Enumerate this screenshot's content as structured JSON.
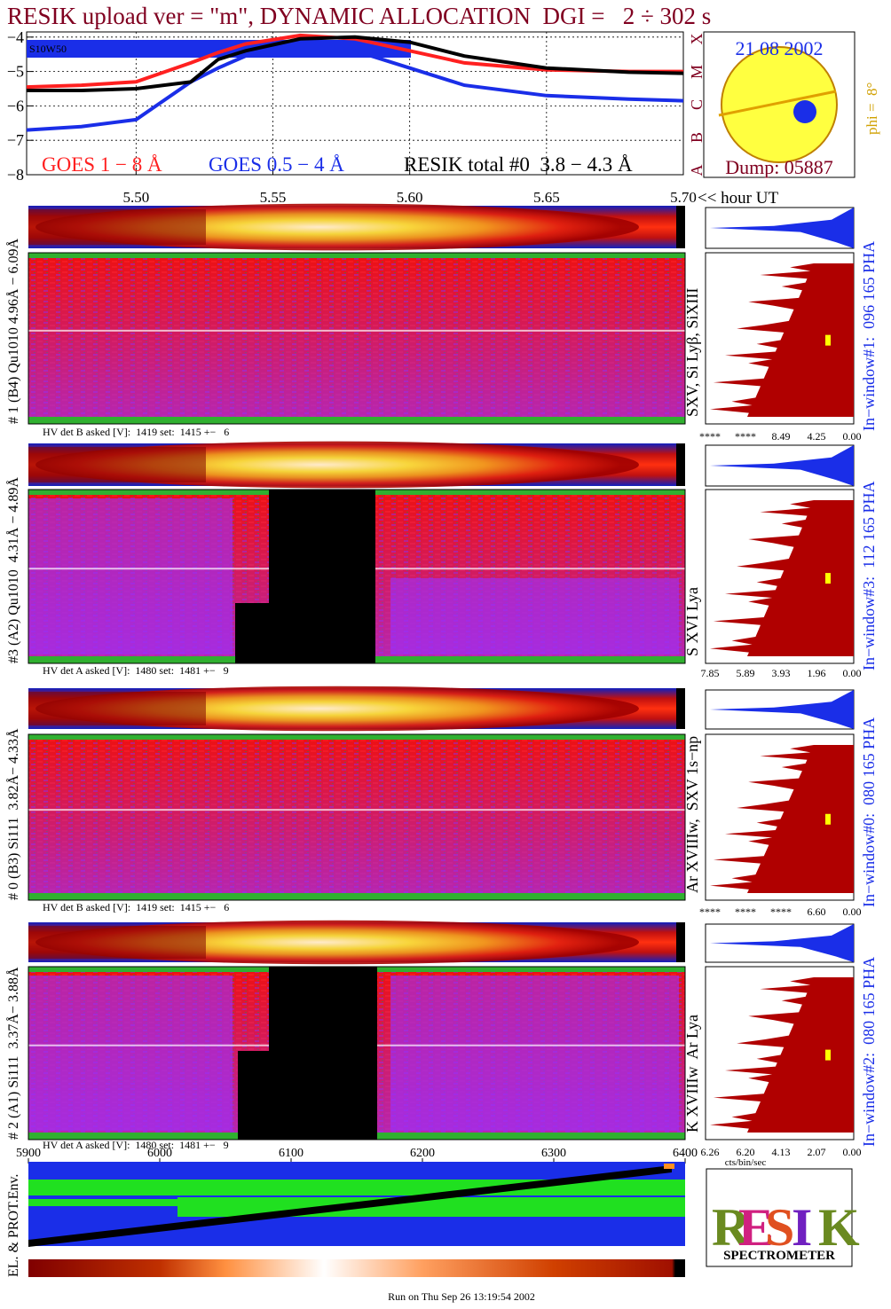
{
  "title": "RESIK upload ver = \"m\", DYNAMIC ALLOCATION  DGI =   2 ÷ 302 s",
  "chart_data": {
    "type": "line",
    "x_label": "<< hour UT",
    "annotation": "S10W50",
    "xlim": [
      5.46,
      5.7
    ],
    "xticks": [
      {
        "value": 5.5,
        "label": "5.50"
      },
      {
        "value": 5.55,
        "label": "5.55"
      },
      {
        "value": 5.6,
        "label": "5.60"
      },
      {
        "value": 5.65,
        "label": "5.65"
      },
      {
        "value": 5.7,
        "label": "5.70"
      }
    ],
    "ylim": [
      -8,
      -3.85
    ],
    "yticks": [
      {
        "value": -8,
        "label": "−8"
      },
      {
        "value": -7,
        "label": "−7"
      },
      {
        "value": -6,
        "label": "−6"
      },
      {
        "value": -5,
        "label": "−5"
      },
      {
        "value": -4,
        "label": "−4"
      }
    ],
    "grid": true,
    "x": [
      5.46,
      5.48,
      5.5,
      5.52,
      5.53,
      5.54,
      5.56,
      5.58,
      5.6,
      5.62,
      5.65,
      5.68,
      5.7
    ],
    "series": [
      {
        "name": "GOES 1 − 8 Å",
        "color": "#ff2020",
        "values": [
          -5.45,
          -5.4,
          -5.3,
          -4.75,
          -4.45,
          -4.2,
          -3.95,
          -4.05,
          -4.4,
          -4.75,
          -4.95,
          -5.0,
          -5.0
        ]
      },
      {
        "name": "GOES 0.5 − 4 Å",
        "color": "#1a2ee8",
        "values": [
          -6.7,
          -6.6,
          -6.4,
          -5.3,
          -4.9,
          -4.55,
          -4.3,
          -4.4,
          -4.9,
          -5.4,
          -5.7,
          -5.8,
          -5.85
        ]
      },
      {
        "name": "RESIK total #0  3.8 − 4.3 Å",
        "color": "#000000",
        "values": [
          -5.55,
          -5.55,
          -5.5,
          -5.3,
          -4.65,
          -4.4,
          -4.05,
          -4.0,
          -4.15,
          -4.55,
          -4.9,
          -5.02,
          -5.05
        ]
      }
    ]
  },
  "sun_panel": {
    "date": "21 08 2002",
    "dump": "Dump: 05887",
    "phi": "phi =  8°",
    "classes": [
      "X",
      "M",
      "C",
      "B",
      "A"
    ]
  },
  "detectors": [
    {
      "label": "# 1 (B4) Qu1010 4.96Å − 6.09Å",
      "lines": "SXV, Si Lyβ, SiXIII",
      "window": "In−window#1:  096 165 PHA",
      "hv": "HV det B asked [V]:  1419 set:  1415 +−   6",
      "hist_ticks": [
        "****",
        "****",
        "8.49",
        "4.25",
        "0.00"
      ]
    },
    {
      "label": "#3 (A2) Qu1010  4.31Å − 4.89Å",
      "lines": "S XVI Lya",
      "window": "In−window#3:  112 165 PHA",
      "hv": "HV det A asked [V]:  1480 set:  1481 +−   9",
      "hist_ticks": [
        "7.85",
        "5.89",
        "3.93",
        "1.96",
        "0.00"
      ]
    },
    {
      "label": "# 0 (B3) Si111  3.82Å− 4.33Å",
      "lines": "Ar XVIIIw,  SXV 1s−np",
      "window": "In−window#0:  080 165 PHA",
      "hv": "HV det B asked [V]:  1419 set:  1415 +−   6",
      "hist_ticks": [
        "****",
        "****",
        "****",
        "6.60",
        "0.00"
      ]
    },
    {
      "label": "# 2 (A1) Si111  3.37Å− 3.88Å",
      "lines": "K XVIIIw  Ar Lya",
      "window": "In−window#2:  080 165 PHA",
      "hv": "HV det A asked [V]:  1480 set:  1481 +−   9",
      "hist_ticks": [
        "6.26",
        "6.20",
        "4.13",
        "2.07",
        "0.00"
      ]
    }
  ],
  "cts_label": "cts/bin/sec",
  "channel_axis": {
    "xlim": [
      5900,
      6400
    ],
    "xticks": [
      5900,
      6000,
      6100,
      6200,
      6300,
      6400
    ]
  },
  "bottom_label": "EL. & PROT.Env.",
  "logo": {
    "letters": [
      "R",
      "E",
      "S",
      "I",
      "K"
    ],
    "text": "SPECTROMETER"
  },
  "footer": "Run on Thu Sep 26 13:19:54 2002"
}
